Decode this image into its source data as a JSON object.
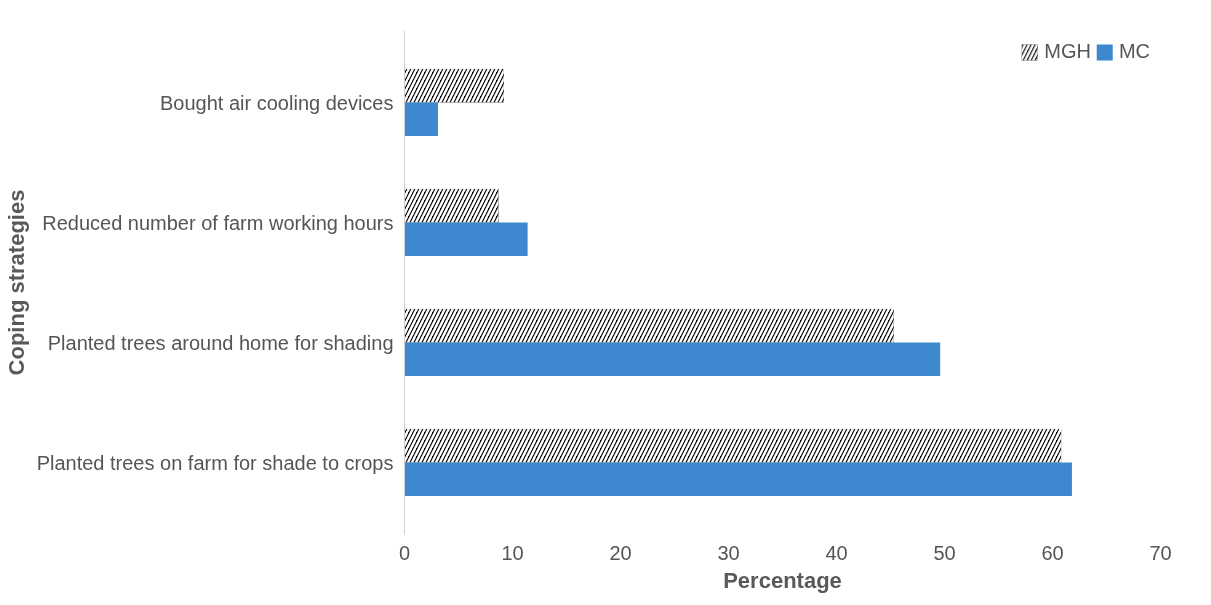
{
  "chart_data": {
    "type": "bar",
    "orientation": "horizontal",
    "ylabel": "Coping strategies",
    "xlabel": "Percentage",
    "categories": [
      "Bought air cooling devices",
      "Reduced number of farm working hours",
      "Planted trees around home for shading",
      "Planted trees on farm for shade to crops"
    ],
    "series": [
      {
        "name": "MGH",
        "color": "#000000",
        "values": [
          9.2,
          8.7,
          45.3,
          60.8
        ]
      },
      {
        "name": "MC",
        "color": "#3d88cf",
        "values": [
          3.1,
          11.4,
          49.6,
          61.8
        ]
      }
    ],
    "xlim": [
      0,
      70
    ],
    "xticks": [
      0,
      10,
      20,
      30,
      40,
      50,
      60,
      70
    ],
    "grid": false,
    "legend": "top right"
  }
}
